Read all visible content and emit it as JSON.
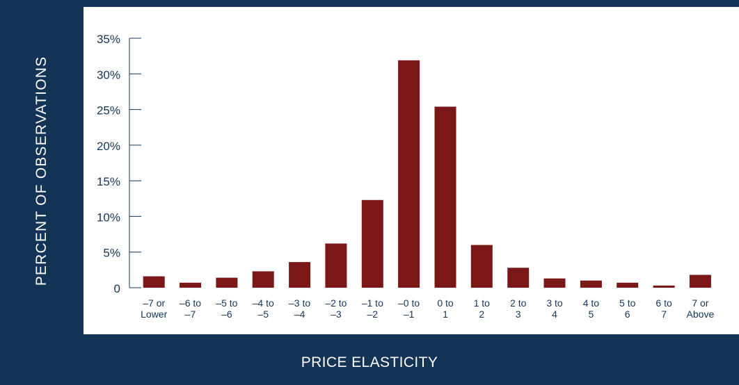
{
  "chart_data": {
    "type": "bar",
    "xlabel": "PRICE ELASTICITY",
    "ylabel": "PERCENT OF OBSERVATIONS",
    "ylim": [
      0,
      35
    ],
    "yticks": [
      {
        "value": 0,
        "label": "0"
      },
      {
        "value": 5,
        "label": "5%"
      },
      {
        "value": 10,
        "label": "10%"
      },
      {
        "value": 15,
        "label": "15%"
      },
      {
        "value": 20,
        "label": "20%"
      },
      {
        "value": 25,
        "label": "25%"
      },
      {
        "value": 30,
        "label": "30%"
      },
      {
        "value": 35,
        "label": "35%"
      }
    ],
    "categories": [
      [
        "–7 or",
        "Lower"
      ],
      [
        "–6 to",
        "–7"
      ],
      [
        "–5 to",
        "–6"
      ],
      [
        "–4 to",
        "–5"
      ],
      [
        "–3 to",
        "–4"
      ],
      [
        "–2 to",
        "–3"
      ],
      [
        "–1 to",
        "–2"
      ],
      [
        "–0 to",
        "–1"
      ],
      [
        "0 to",
        "1"
      ],
      [
        "1 to",
        "2"
      ],
      [
        "2 to",
        "3"
      ],
      [
        "3 to",
        "4"
      ],
      [
        "4 to",
        "5"
      ],
      [
        "5 to",
        "6"
      ],
      [
        "6 to",
        "7"
      ],
      [
        "7 or",
        "Above"
      ]
    ],
    "values": [
      1.6,
      0.7,
      1.4,
      2.3,
      3.6,
      6.2,
      12.3,
      31.9,
      25.4,
      6.0,
      2.8,
      1.3,
      1.0,
      0.7,
      0.3,
      1.8
    ],
    "grid": false,
    "legend": "none",
    "colors": {
      "bar": "#7a1717",
      "frame": "#143457",
      "panel": "#ffffff",
      "axis": "#143457",
      "text": "#143457",
      "label_text": "#ffffff"
    }
  }
}
